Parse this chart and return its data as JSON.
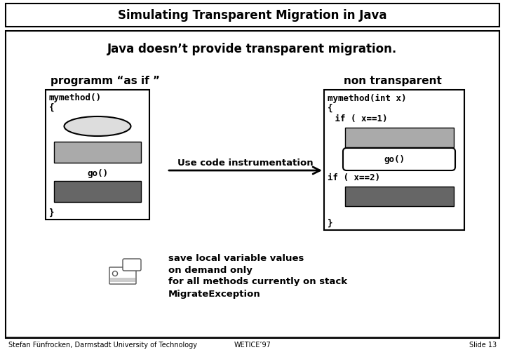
{
  "title": "Simulating Transparent Migration in Java",
  "subtitle": "Java doesn’t provide transparent migration.",
  "label_left": "programm “as if ”",
  "label_right": "non transparent",
  "arrow_label": "Use code instrumentation",
  "left_go_label": "go()",
  "right_go": "go()",
  "right_if1": " if ( x==1)",
  "right_if2": "if ( x==2)",
  "save_text": [
    "save local variable values",
    "on demand only",
    "for all methods currently on stack",
    "MigrateException"
  ],
  "footer_left": "Stefan Fünfrocken, Darmstadt University of Technology",
  "footer_center": "WETICE’97",
  "footer_right": "Slide 13",
  "bg_color": "#ffffff",
  "box_fill_light": "#aaaaaa",
  "box_fill_dark": "#666666",
  "ellipse_fill": "#dddddd"
}
